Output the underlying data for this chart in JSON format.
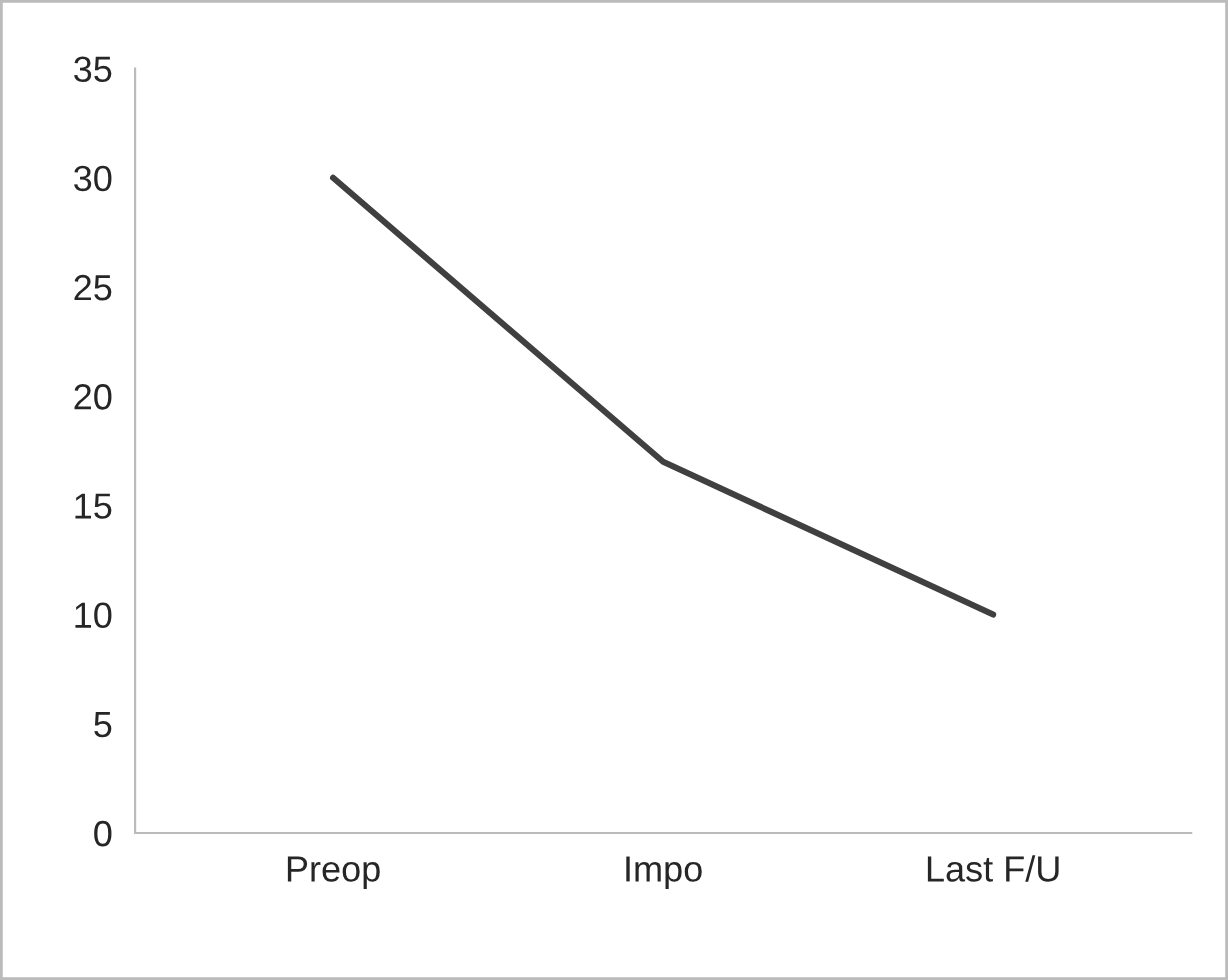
{
  "chart_data": {
    "type": "line",
    "categories": [
      "Preop",
      "Impo",
      "Last F/U"
    ],
    "series": [
      {
        "color": "#404040",
        "values": [
          30,
          17,
          10
        ]
      }
    ],
    "ylim": [
      0,
      35
    ],
    "yticks": [
      0,
      5,
      10,
      15,
      20,
      25,
      30,
      35
    ],
    "grid": false,
    "legend": false,
    "marker": "none",
    "line_style": "solid"
  }
}
